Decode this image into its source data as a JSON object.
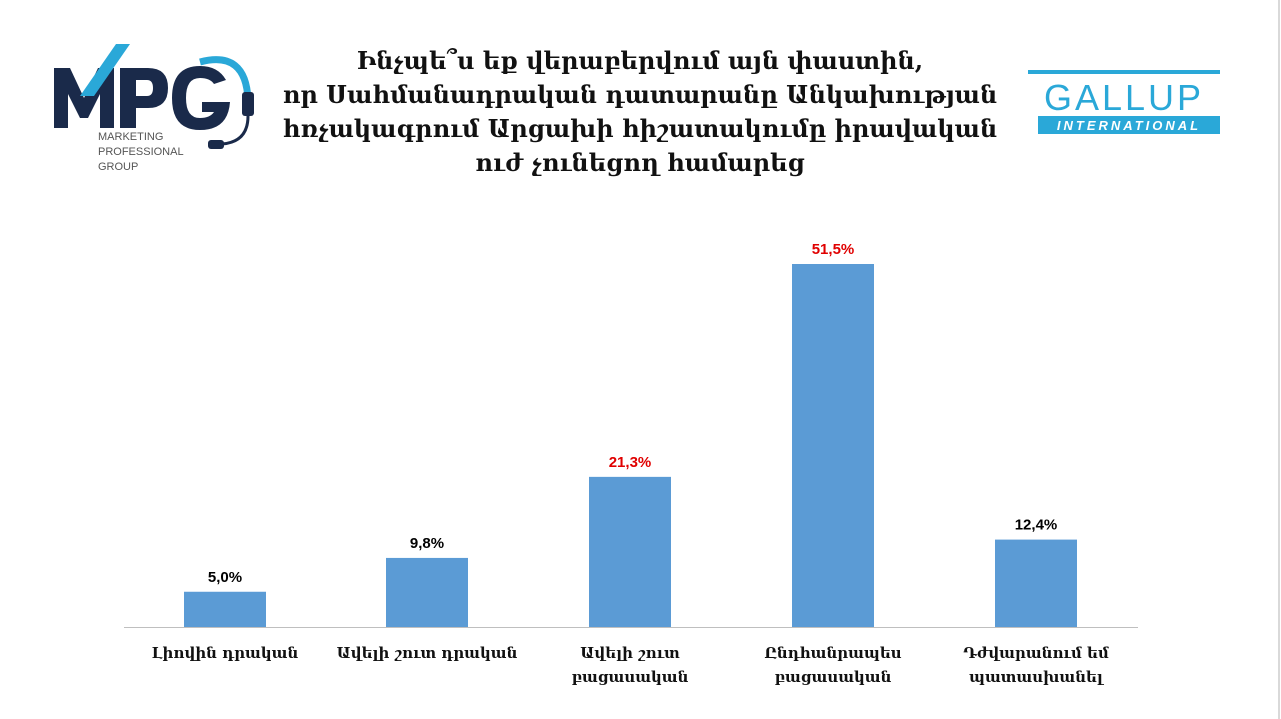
{
  "title_lines": [
    "Ինչպե՞ս եք վերաբերվում այն փաստին,",
    "որ Սահմանադրական դատարանը Անկախության",
    "հռչակագրում Արցախի հիշատակումը իրավական",
    "ուժ չունեցող համարեց"
  ],
  "logos": {
    "mpg": {
      "name": "MPG",
      "lines": [
        "MARKETING",
        "PROFESSIONAL",
        "GROUP"
      ]
    },
    "gallup": {
      "name": "GALLUP",
      "sub": "INTERNATIONAL",
      "color": "#2aa8d8"
    }
  },
  "chart_data": {
    "type": "bar",
    "categories": [
      [
        "Լիովին դրական"
      ],
      [
        "Ավելի շուտ դրական"
      ],
      [
        "Ավելի շուտ",
        "բացասական"
      ],
      [
        "Ընդհանրապես",
        "բացասական"
      ],
      [
        "Դժվարանում եմ",
        "պատասխանել"
      ]
    ],
    "values": [
      5.0,
      9.8,
      21.3,
      51.5,
      12.4
    ],
    "value_labels": [
      "5,0%",
      "9,8%",
      "21,3%",
      "51,5%",
      "12,4%"
    ],
    "label_colors": [
      "#000000",
      "#000000",
      "#e00000",
      "#e00000",
      "#000000"
    ],
    "bar_color": "#5b9bd5",
    "ylim": [
      0,
      51.5
    ],
    "grid": false,
    "legend": "none"
  }
}
